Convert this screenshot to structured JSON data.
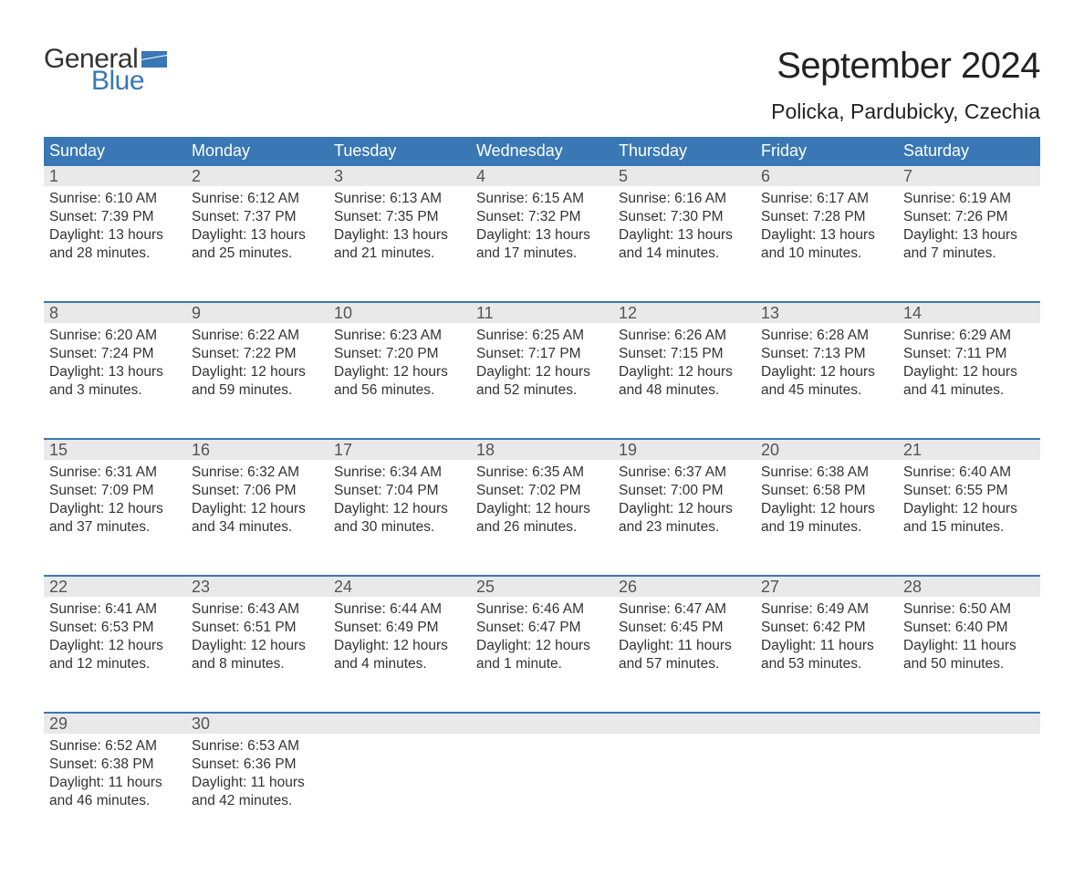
{
  "logo": {
    "top": "General",
    "bottom": "Blue",
    "top_color": "#333333",
    "bottom_color": "#3a78b5",
    "flag_color": "#3a78b5"
  },
  "title": "September 2024",
  "subtitle": "Policka, Pardubicky, Czechia",
  "colors": {
    "header_bg": "#3a78b5",
    "header_text": "#ffffff",
    "daynum_bg": "#e9e9e9",
    "daynum_text": "#555555",
    "body_text": "#333333",
    "week_border": "#3a78b5",
    "page_bg": "#ffffff"
  },
  "typography": {
    "title_fontsize": 40,
    "subtitle_fontsize": 23,
    "dayheader_fontsize": 18,
    "daynum_fontsize": 18,
    "body_fontsize": 15.5,
    "font_family": "Arial"
  },
  "day_headers": [
    "Sunday",
    "Monday",
    "Tuesday",
    "Wednesday",
    "Thursday",
    "Friday",
    "Saturday"
  ],
  "weeks": [
    [
      {
        "n": "1",
        "sunrise": "Sunrise: 6:10 AM",
        "sunset": "Sunset: 7:39 PM",
        "day1": "Daylight: 13 hours",
        "day2": "and 28 minutes."
      },
      {
        "n": "2",
        "sunrise": "Sunrise: 6:12 AM",
        "sunset": "Sunset: 7:37 PM",
        "day1": "Daylight: 13 hours",
        "day2": "and 25 minutes."
      },
      {
        "n": "3",
        "sunrise": "Sunrise: 6:13 AM",
        "sunset": "Sunset: 7:35 PM",
        "day1": "Daylight: 13 hours",
        "day2": "and 21 minutes."
      },
      {
        "n": "4",
        "sunrise": "Sunrise: 6:15 AM",
        "sunset": "Sunset: 7:32 PM",
        "day1": "Daylight: 13 hours",
        "day2": "and 17 minutes."
      },
      {
        "n": "5",
        "sunrise": "Sunrise: 6:16 AM",
        "sunset": "Sunset: 7:30 PM",
        "day1": "Daylight: 13 hours",
        "day2": "and 14 minutes."
      },
      {
        "n": "6",
        "sunrise": "Sunrise: 6:17 AM",
        "sunset": "Sunset: 7:28 PM",
        "day1": "Daylight: 13 hours",
        "day2": "and 10 minutes."
      },
      {
        "n": "7",
        "sunrise": "Sunrise: 6:19 AM",
        "sunset": "Sunset: 7:26 PM",
        "day1": "Daylight: 13 hours",
        "day2": "and 7 minutes."
      }
    ],
    [
      {
        "n": "8",
        "sunrise": "Sunrise: 6:20 AM",
        "sunset": "Sunset: 7:24 PM",
        "day1": "Daylight: 13 hours",
        "day2": "and 3 minutes."
      },
      {
        "n": "9",
        "sunrise": "Sunrise: 6:22 AM",
        "sunset": "Sunset: 7:22 PM",
        "day1": "Daylight: 12 hours",
        "day2": "and 59 minutes."
      },
      {
        "n": "10",
        "sunrise": "Sunrise: 6:23 AM",
        "sunset": "Sunset: 7:20 PM",
        "day1": "Daylight: 12 hours",
        "day2": "and 56 minutes."
      },
      {
        "n": "11",
        "sunrise": "Sunrise: 6:25 AM",
        "sunset": "Sunset: 7:17 PM",
        "day1": "Daylight: 12 hours",
        "day2": "and 52 minutes."
      },
      {
        "n": "12",
        "sunrise": "Sunrise: 6:26 AM",
        "sunset": "Sunset: 7:15 PM",
        "day1": "Daylight: 12 hours",
        "day2": "and 48 minutes."
      },
      {
        "n": "13",
        "sunrise": "Sunrise: 6:28 AM",
        "sunset": "Sunset: 7:13 PM",
        "day1": "Daylight: 12 hours",
        "day2": "and 45 minutes."
      },
      {
        "n": "14",
        "sunrise": "Sunrise: 6:29 AM",
        "sunset": "Sunset: 7:11 PM",
        "day1": "Daylight: 12 hours",
        "day2": "and 41 minutes."
      }
    ],
    [
      {
        "n": "15",
        "sunrise": "Sunrise: 6:31 AM",
        "sunset": "Sunset: 7:09 PM",
        "day1": "Daylight: 12 hours",
        "day2": "and 37 minutes."
      },
      {
        "n": "16",
        "sunrise": "Sunrise: 6:32 AM",
        "sunset": "Sunset: 7:06 PM",
        "day1": "Daylight: 12 hours",
        "day2": "and 34 minutes."
      },
      {
        "n": "17",
        "sunrise": "Sunrise: 6:34 AM",
        "sunset": "Sunset: 7:04 PM",
        "day1": "Daylight: 12 hours",
        "day2": "and 30 minutes."
      },
      {
        "n": "18",
        "sunrise": "Sunrise: 6:35 AM",
        "sunset": "Sunset: 7:02 PM",
        "day1": "Daylight: 12 hours",
        "day2": "and 26 minutes."
      },
      {
        "n": "19",
        "sunrise": "Sunrise: 6:37 AM",
        "sunset": "Sunset: 7:00 PM",
        "day1": "Daylight: 12 hours",
        "day2": "and 23 minutes."
      },
      {
        "n": "20",
        "sunrise": "Sunrise: 6:38 AM",
        "sunset": "Sunset: 6:58 PM",
        "day1": "Daylight: 12 hours",
        "day2": "and 19 minutes."
      },
      {
        "n": "21",
        "sunrise": "Sunrise: 6:40 AM",
        "sunset": "Sunset: 6:55 PM",
        "day1": "Daylight: 12 hours",
        "day2": "and 15 minutes."
      }
    ],
    [
      {
        "n": "22",
        "sunrise": "Sunrise: 6:41 AM",
        "sunset": "Sunset: 6:53 PM",
        "day1": "Daylight: 12 hours",
        "day2": "and 12 minutes."
      },
      {
        "n": "23",
        "sunrise": "Sunrise: 6:43 AM",
        "sunset": "Sunset: 6:51 PM",
        "day1": "Daylight: 12 hours",
        "day2": "and 8 minutes."
      },
      {
        "n": "24",
        "sunrise": "Sunrise: 6:44 AM",
        "sunset": "Sunset: 6:49 PM",
        "day1": "Daylight: 12 hours",
        "day2": "and 4 minutes."
      },
      {
        "n": "25",
        "sunrise": "Sunrise: 6:46 AM",
        "sunset": "Sunset: 6:47 PM",
        "day1": "Daylight: 12 hours",
        "day2": "and 1 minute."
      },
      {
        "n": "26",
        "sunrise": "Sunrise: 6:47 AM",
        "sunset": "Sunset: 6:45 PM",
        "day1": "Daylight: 11 hours",
        "day2": "and 57 minutes."
      },
      {
        "n": "27",
        "sunrise": "Sunrise: 6:49 AM",
        "sunset": "Sunset: 6:42 PM",
        "day1": "Daylight: 11 hours",
        "day2": "and 53 minutes."
      },
      {
        "n": "28",
        "sunrise": "Sunrise: 6:50 AM",
        "sunset": "Sunset: 6:40 PM",
        "day1": "Daylight: 11 hours",
        "day2": "and 50 minutes."
      }
    ],
    [
      {
        "n": "29",
        "sunrise": "Sunrise: 6:52 AM",
        "sunset": "Sunset: 6:38 PM",
        "day1": "Daylight: 11 hours",
        "day2": "and 46 minutes."
      },
      {
        "n": "30",
        "sunrise": "Sunrise: 6:53 AM",
        "sunset": "Sunset: 6:36 PM",
        "day1": "Daylight: 11 hours",
        "day2": "and 42 minutes."
      },
      {
        "n": "",
        "sunrise": "",
        "sunset": "",
        "day1": "",
        "day2": ""
      },
      {
        "n": "",
        "sunrise": "",
        "sunset": "",
        "day1": "",
        "day2": ""
      },
      {
        "n": "",
        "sunrise": "",
        "sunset": "",
        "day1": "",
        "day2": ""
      },
      {
        "n": "",
        "sunrise": "",
        "sunset": "",
        "day1": "",
        "day2": ""
      },
      {
        "n": "",
        "sunrise": "",
        "sunset": "",
        "day1": "",
        "day2": ""
      }
    ]
  ]
}
